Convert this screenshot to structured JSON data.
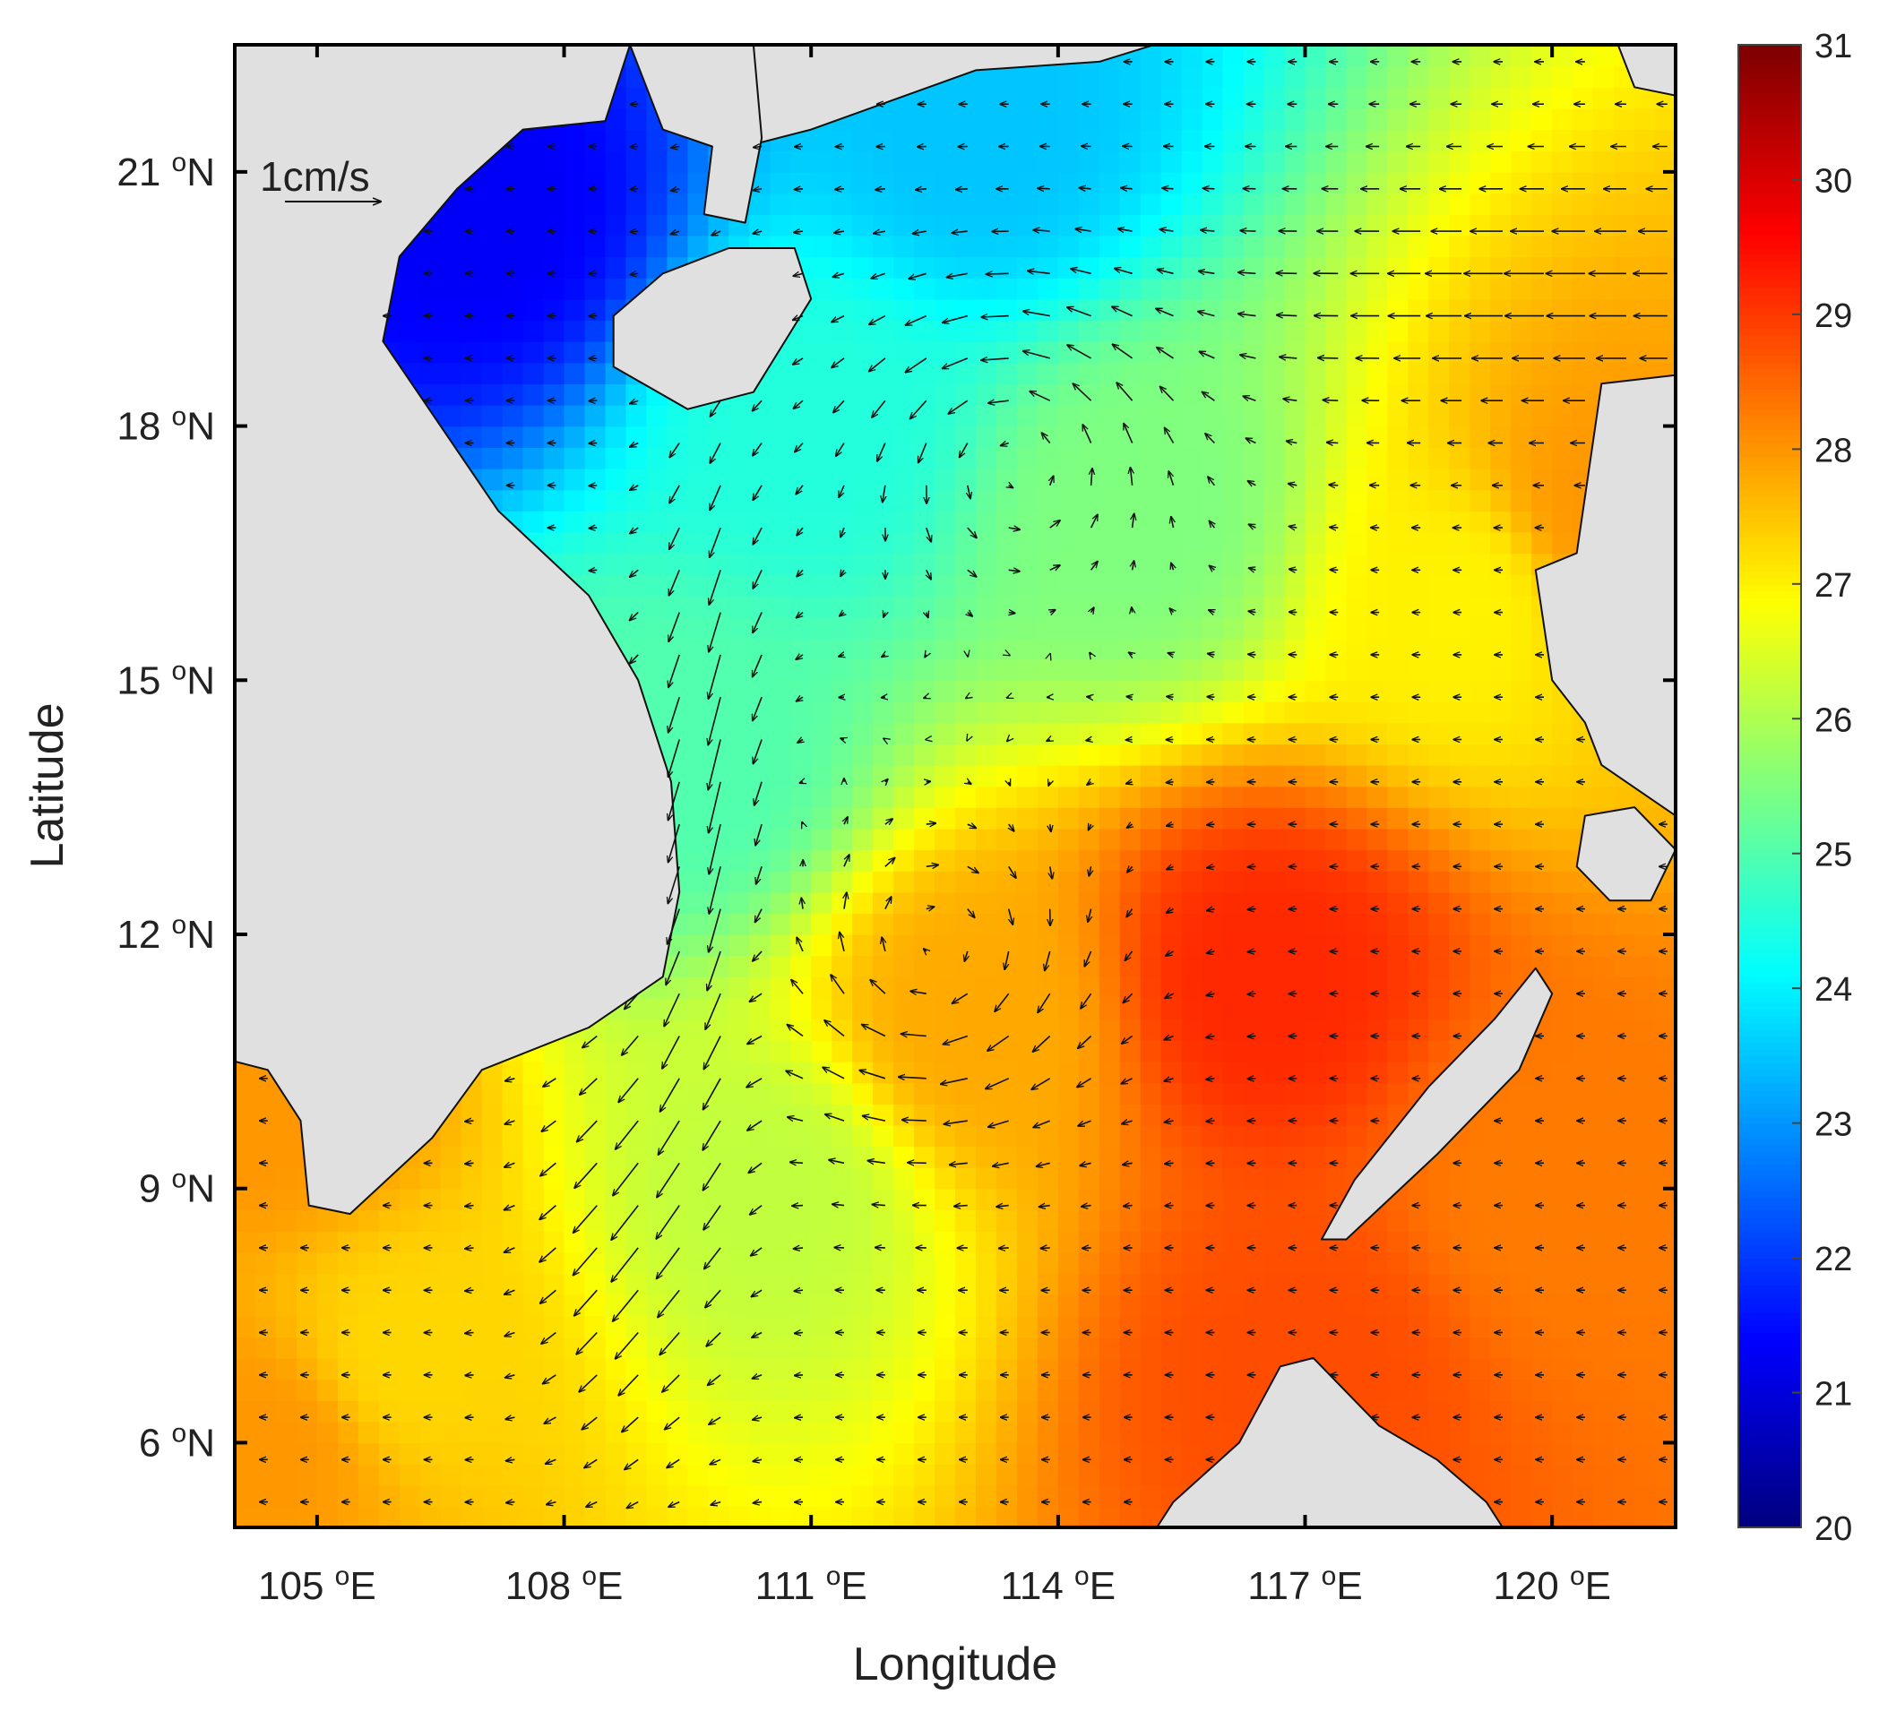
{
  "map": {
    "xlabel": "Longitude",
    "ylabel": "Latitude",
    "xlim": [
      104.0,
      121.5
    ],
    "ylim": [
      5.0,
      22.5
    ],
    "x_ticks": [
      105,
      108,
      111,
      114,
      117,
      120
    ],
    "y_ticks": [
      6,
      9,
      12,
      15,
      18,
      21
    ],
    "x_tick_labels": [
      "105 °E",
      "108 °E",
      "111 °E",
      "114 °E",
      "117 °E",
      "120 °E"
    ],
    "y_tick_labels": [
      "6 °N",
      "9 °N",
      "12 °N",
      "15 °N",
      "18 °N",
      "21 °N"
    ],
    "reference_vector": {
      "label": "1cm/s",
      "lon": 105.5,
      "lat": 20.7
    },
    "land_color": "#e0e0e0",
    "coast_color": "#111111"
  },
  "colorbar": {
    "min": 20,
    "max": 31,
    "tick_labels": [
      "20",
      "21",
      "22",
      "23",
      "24",
      "25",
      "26",
      "27",
      "28",
      "29",
      "30",
      "31"
    ],
    "colormap": "jet"
  },
  "chart_data": {
    "type": "heatmap",
    "title": "",
    "xlabel": "Longitude",
    "ylabel": "Latitude",
    "xlim": [
      104.0,
      121.5
    ],
    "ylim": [
      5.0,
      22.5
    ],
    "color_range": [
      20,
      31
    ],
    "field_anchors": [
      {
        "lon": 107.0,
        "lat": 20.5,
        "value": 21.3
      },
      {
        "lon": 113.0,
        "lat": 21.5,
        "value": 23.5
      },
      {
        "lon": 111.0,
        "lat": 18.0,
        "value": 24.5
      },
      {
        "lon": 115.0,
        "lat": 17.0,
        "value": 25.5
      },
      {
        "lon": 119.0,
        "lat": 16.0,
        "value": 27.0
      },
      {
        "lon": 120.5,
        "lat": 17.0,
        "value": 28.0
      },
      {
        "lon": 116.5,
        "lat": 11.5,
        "value": 29.2
      },
      {
        "lon": 113.0,
        "lat": 11.0,
        "value": 27.8
      },
      {
        "lon": 109.5,
        "lat": 14.0,
        "value": 25.0
      },
      {
        "lon": 110.5,
        "lat": 9.0,
        "value": 26.2
      },
      {
        "lon": 106.0,
        "lat": 7.0,
        "value": 27.3
      },
      {
        "lon": 104.5,
        "lat": 6.0,
        "value": 28.0
      },
      {
        "lon": 117.0,
        "lat": 7.0,
        "value": 28.8
      },
      {
        "lon": 120.0,
        "lat": 9.0,
        "value": 28.3
      },
      {
        "lon": 104.5,
        "lat": 10.0,
        "value": 28.0
      }
    ],
    "current_features": [
      {
        "name": "coastal jet",
        "lon": 109.8,
        "lat": 13.0,
        "direction": "southward"
      },
      {
        "name": "cyclonic eddy",
        "lon": 113.5,
        "lat": 17.8,
        "rotation": "counterclockwise"
      },
      {
        "name": "anticyclonic eddy",
        "lon": 112.5,
        "lat": 11.6,
        "rotation": "clockwise"
      },
      {
        "name": "westward flow",
        "lon": 119.0,
        "lat": 19.5,
        "direction": "westward"
      }
    ]
  }
}
